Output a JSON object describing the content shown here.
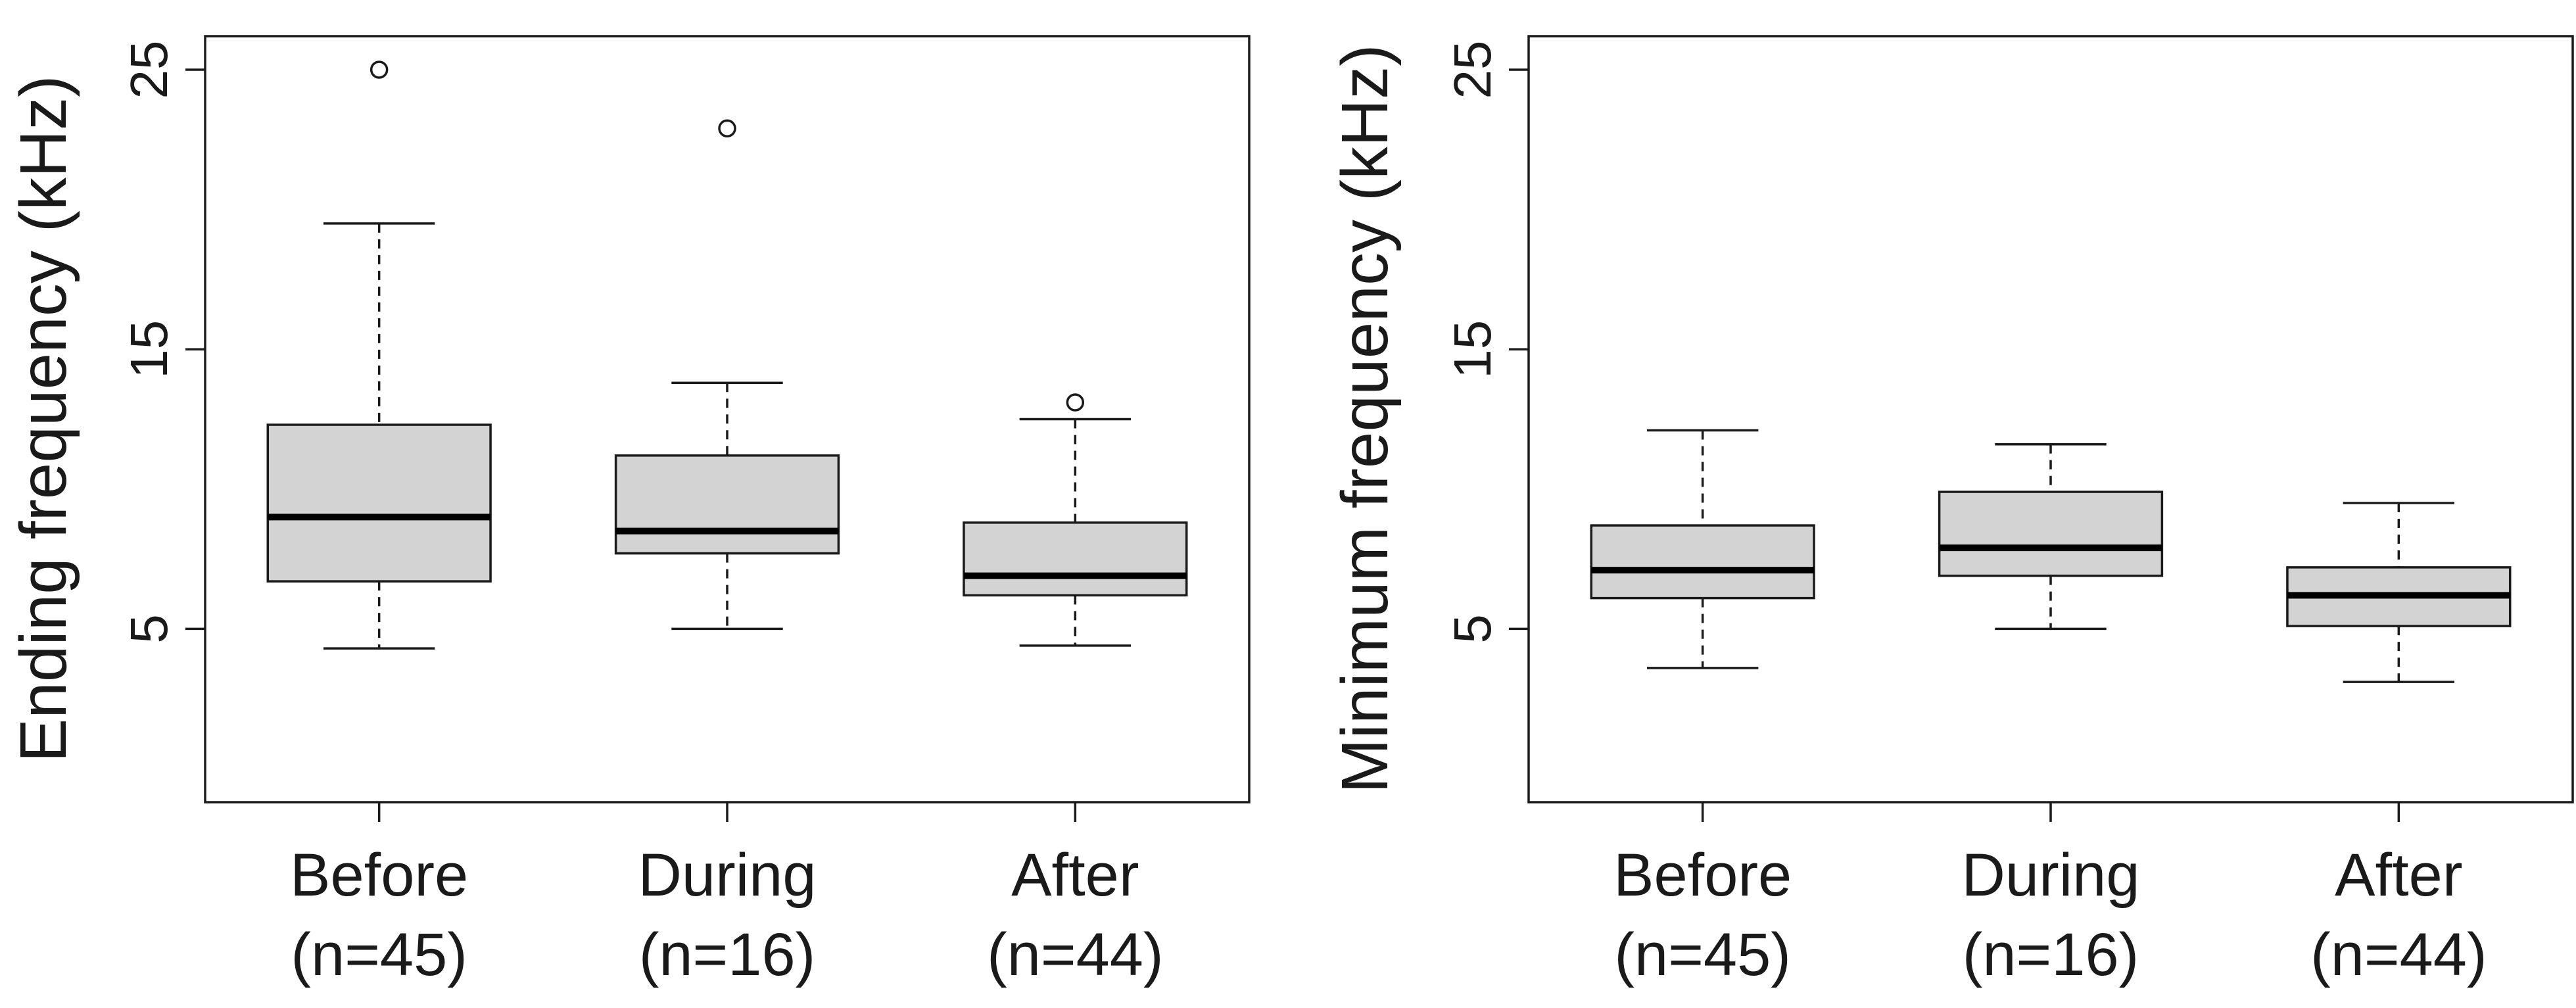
{
  "chart_data": [
    {
      "type": "boxplot",
      "title": "",
      "ylabel": "Ending frequency (kHz)",
      "xlabel": "",
      "ylim": [
        -1.2,
        26.2
      ],
      "yticks": [
        5,
        15,
        25
      ],
      "categories": [
        {
          "name": "Before",
          "n_label": "(n=45)"
        },
        {
          "name": "During",
          "n_label": "(n=16)"
        },
        {
          "name": "After",
          "n_label": "(n=44)"
        }
      ],
      "boxes": [
        {
          "whisker_low": 4.3,
          "q1": 6.7,
          "median": 9.0,
          "q3": 12.3,
          "whisker_high": 19.5,
          "outliers": [
            25.0
          ]
        },
        {
          "whisker_low": 5.0,
          "q1": 7.7,
          "median": 8.5,
          "q3": 11.2,
          "whisker_high": 13.8,
          "outliers": [
            22.9
          ]
        },
        {
          "whisker_low": 4.4,
          "q1": 6.2,
          "median": 6.9,
          "q3": 8.8,
          "whisker_high": 12.5,
          "outliers": [
            13.1
          ]
        }
      ]
    },
    {
      "type": "boxplot",
      "title": "",
      "ylabel": "Minimum frequency (kHz)",
      "xlabel": "",
      "ylim": [
        -1.2,
        26.2
      ],
      "yticks": [
        5,
        15,
        25
      ],
      "categories": [
        {
          "name": "Before",
          "n_label": "(n=45)"
        },
        {
          "name": "During",
          "n_label": "(n=16)"
        },
        {
          "name": "After",
          "n_label": "(n=44)"
        }
      ],
      "boxes": [
        {
          "whisker_low": 3.6,
          "q1": 6.1,
          "median": 7.1,
          "q3": 8.7,
          "whisker_high": 12.1,
          "outliers": []
        },
        {
          "whisker_low": 5.0,
          "q1": 6.9,
          "median": 7.9,
          "q3": 9.9,
          "whisker_high": 11.6,
          "outliers": []
        },
        {
          "whisker_low": 3.1,
          "q1": 5.1,
          "median": 6.2,
          "q3": 7.2,
          "whisker_high": 9.5,
          "outliers": []
        }
      ]
    }
  ]
}
